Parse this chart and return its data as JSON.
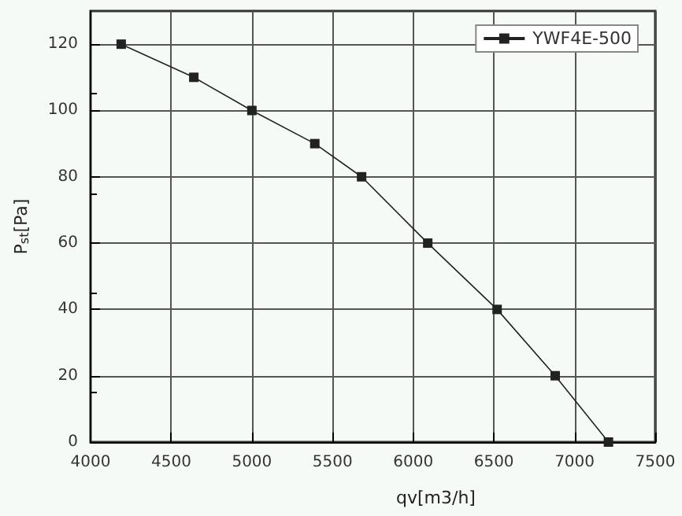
{
  "chart_data": {
    "type": "line",
    "xlabel": "qv[m3/h]",
    "ylabel": "P$_{st}$[Pa]",
    "x": [
      4190,
      4640,
      5000,
      5390,
      5680,
      6090,
      6520,
      6880,
      7210
    ],
    "series": [
      {
        "name": "YWF4E-500",
        "color": "#222222",
        "values": [
          120,
          110,
          100,
          90,
          80,
          60,
          40,
          20,
          0
        ]
      }
    ],
    "xlim": [
      4000,
      7500
    ],
    "xticks": [
      4000,
      4500,
      5000,
      5500,
      6000,
      6500,
      7000,
      7500
    ],
    "ylim": [
      0,
      130
    ],
    "yticks": [
      0,
      20,
      40,
      60,
      80,
      100,
      120
    ],
    "grid": true,
    "legend": "top right",
    "marker": "square",
    "line_style": "solid"
  }
}
